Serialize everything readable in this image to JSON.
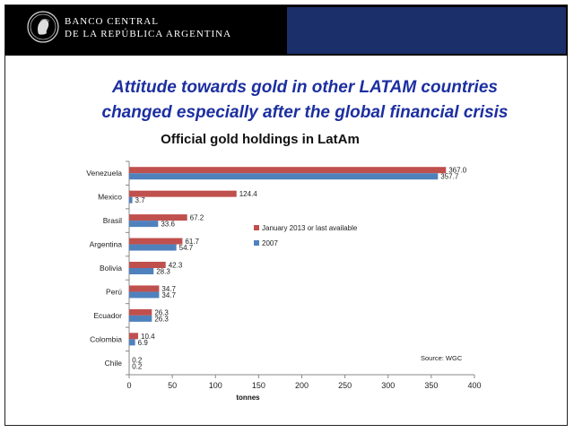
{
  "header": {
    "bank_name_line1": "BANCO CENTRAL",
    "bank_name_line2": "DE LA REPÚBLICA ARGENTINA"
  },
  "slide": {
    "title_line1": "Attitude towards gold in other LATAM countries",
    "title_line2": "changed especially after the global financial crisis"
  },
  "colors": {
    "series_2013": "#c0504d",
    "series_2007": "#4f81bd",
    "title": "#1c2fa0",
    "header_blue": "#1b2f6b"
  },
  "chart_data": {
    "type": "bar",
    "orientation": "horizontal",
    "title": "Official gold holdings in LatAm",
    "xlabel": "tonnes",
    "ylabel": "",
    "xlim": [
      0,
      400
    ],
    "xticks": [
      0,
      50,
      100,
      150,
      200,
      250,
      300,
      350,
      400
    ],
    "categories": [
      "Venezuela",
      "Mexico",
      "Brasil",
      "Argentina",
      "Bolivia",
      "Perú",
      "Ecuador",
      "Colombia",
      "Chile"
    ],
    "series": [
      {
        "name": "January 2013 or last available",
        "values": [
          367.0,
          124.4,
          67.2,
          61.7,
          42.3,
          34.7,
          26.3,
          10.4,
          0.2
        ],
        "labels": [
          "367.0",
          "124.4",
          "67.2",
          "61.7",
          "42.3",
          "34.7",
          "26.3",
          "10.4",
          "0.2"
        ]
      },
      {
        "name": "2007",
        "values": [
          357.7,
          3.7,
          33.6,
          54.7,
          28.3,
          34.7,
          26.3,
          6.9,
          0.2
        ],
        "labels": [
          "357.7",
          "3.7",
          "33.6",
          "54.7",
          "28.3",
          "34.7",
          "26.3",
          "6.9",
          "0.2"
        ]
      }
    ],
    "legend_position": "middle-right",
    "annotation": "Source: WGC",
    "grid": false
  }
}
